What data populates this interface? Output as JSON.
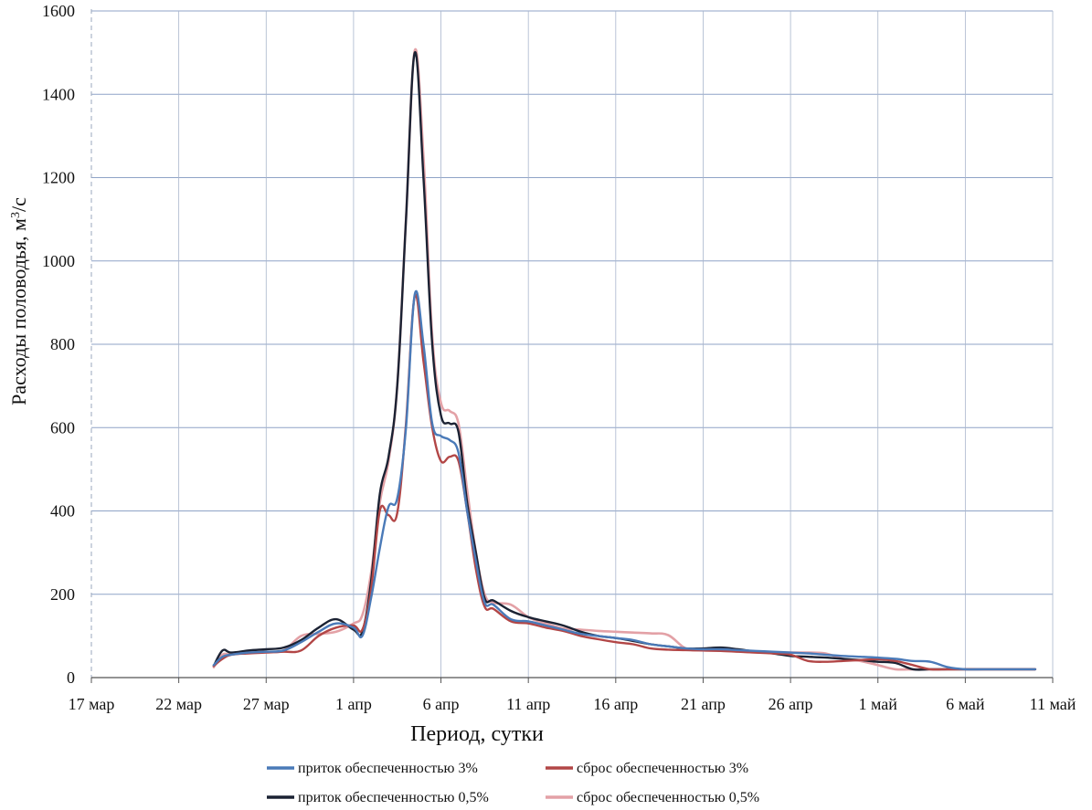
{
  "chart_data": {
    "type": "line",
    "title": "",
    "xlabel": "Период, сутки",
    "ylabel_main": "Расходы половодья, м",
    "ylabel_sup": "3",
    "ylabel_tail": "/с",
    "ylim": [
      0,
      1600
    ],
    "y_ticks": [
      0,
      200,
      400,
      600,
      800,
      1000,
      1200,
      1400,
      1600
    ],
    "xlim_days": [
      0,
      55
    ],
    "x_tick_labels": [
      "17 мар",
      "22 мар",
      "27 мар",
      "1 апр",
      "6 апр",
      "11 апр",
      "16 апр",
      "21 апр",
      "26 апр",
      "1 май",
      "6 май",
      "11 май"
    ],
    "grid": true,
    "legend_position": "bottom",
    "series": [
      {
        "name": "приток обеспеченностью 3%",
        "color": "#4a7ab8",
        "x": [
          7.0,
          7.5,
          8.0,
          9.0,
          10.0,
          11.0,
          12.0,
          13.0,
          14.0,
          15.0,
          15.5,
          16.0,
          16.5,
          17.0,
          17.5,
          18.0,
          18.5,
          19.0,
          19.5,
          20.0,
          20.5,
          21.0,
          21.5,
          22.0,
          22.5,
          23.0,
          24.0,
          25.0,
          26.0,
          27.0,
          28.0,
          29.0,
          30.0,
          31.0,
          32.0,
          33.0,
          34.0,
          35.0,
          36.0,
          37.0,
          38.0,
          39.0,
          40.0,
          41.0,
          42.0,
          43.0,
          44.0,
          45.0,
          46.0,
          47.0,
          48.0,
          49.0,
          50.0,
          51.0,
          52.0,
          53.0,
          54.0
        ],
        "y": [
          30,
          50,
          55,
          60,
          62,
          65,
          85,
          110,
          130,
          120,
          100,
          190,
          310,
          410,
          430,
          600,
          920,
          800,
          610,
          580,
          570,
          540,
          400,
          280,
          180,
          175,
          140,
          135,
          125,
          115,
          105,
          100,
          95,
          90,
          80,
          75,
          70,
          68,
          68,
          66,
          64,
          62,
          60,
          58,
          55,
          52,
          50,
          48,
          45,
          40,
          38,
          25,
          20,
          20,
          20,
          20,
          20
        ]
      },
      {
        "name": "сброс обеспеченностью 3%",
        "color": "#b24646",
        "x": [
          7.0,
          7.5,
          8.0,
          9.0,
          10.0,
          11.0,
          12.0,
          13.0,
          14.0,
          15.0,
          15.5,
          16.0,
          16.5,
          17.0,
          17.5,
          18.0,
          18.5,
          19.0,
          19.5,
          20.0,
          20.5,
          21.0,
          21.5,
          22.0,
          22.5,
          23.0,
          24.0,
          25.0,
          26.0,
          27.0,
          28.0,
          29.0,
          30.0,
          31.0,
          32.0,
          33.0,
          34.0,
          35.0,
          36.0,
          37.0,
          38.0,
          39.0,
          40.0,
          41.0,
          42.0,
          43.0,
          44.0,
          45.0,
          46.0,
          47.0,
          48.0,
          49.0,
          50.0,
          51.0,
          52.0,
          53.0,
          54.0
        ],
        "y": [
          28,
          45,
          55,
          58,
          60,
          62,
          65,
          100,
          120,
          125,
          115,
          210,
          400,
          390,
          395,
          610,
          915,
          760,
          600,
          520,
          530,
          520,
          400,
          260,
          170,
          165,
          135,
          130,
          120,
          112,
          100,
          92,
          85,
          80,
          70,
          67,
          66,
          65,
          64,
          62,
          60,
          58,
          55,
          40,
          38,
          40,
          42,
          44,
          40,
          30,
          20,
          20,
          20,
          20,
          20,
          20,
          20
        ]
      },
      {
        "name": "приток обеспеченностью 0,5%",
        "color": "#1b2233",
        "x": [
          7.0,
          7.5,
          8.0,
          9.0,
          10.0,
          11.0,
          12.0,
          13.0,
          14.0,
          15.0,
          15.5,
          16.0,
          16.5,
          17.0,
          17.5,
          18.0,
          18.5,
          19.0,
          19.5,
          20.0,
          20.5,
          21.0,
          21.5,
          22.0,
          22.5,
          23.0,
          24.0,
          25.0,
          26.0,
          27.0,
          28.0,
          29.0,
          30.0,
          31.0,
          32.0,
          33.0,
          34.0,
          35.0,
          36.0,
          37.0,
          38.0,
          39.0,
          40.0,
          41.0,
          42.0,
          43.0,
          44.0,
          45.0,
          46.0,
          47.0,
          48.0,
          49.0,
          50.0,
          51.0,
          52.0,
          53.0,
          54.0
        ],
        "y": [
          28,
          65,
          60,
          65,
          68,
          72,
          90,
          120,
          140,
          115,
          110,
          230,
          440,
          530,
          700,
          1100,
          1500,
          1200,
          800,
          630,
          610,
          590,
          420,
          300,
          190,
          185,
          160,
          145,
          135,
          125,
          110,
          100,
          95,
          88,
          80,
          75,
          70,
          70,
          72,
          68,
          62,
          58,
          52,
          50,
          48,
          45,
          42,
          38,
          35,
          20,
          20,
          20,
          20,
          20,
          20,
          20,
          20
        ]
      },
      {
        "name": "сброс обеспеченностью 0,5%",
        "color": "#e3a1a6",
        "x": [
          7.0,
          7.5,
          8.0,
          9.0,
          10.0,
          11.0,
          12.0,
          13.0,
          14.0,
          15.0,
          15.5,
          16.0,
          16.5,
          17.0,
          17.5,
          18.0,
          18.5,
          19.0,
          19.5,
          20.0,
          20.5,
          21.0,
          21.5,
          22.0,
          22.5,
          23.0,
          24.0,
          25.0,
          26.0,
          27.0,
          28.0,
          29.0,
          30.0,
          31.0,
          32.0,
          33.0,
          34.0,
          35.0,
          36.0,
          37.0,
          38.0,
          39.0,
          40.0,
          41.0,
          42.0,
          43.0,
          44.0,
          45.0,
          46.0,
          47.0,
          48.0,
          49.0,
          50.0,
          51.0,
          52.0,
          53.0,
          54.0
        ],
        "y": [
          25,
          55,
          55,
          60,
          62,
          65,
          100,
          105,
          110,
          130,
          150,
          250,
          420,
          520,
          700,
          1100,
          1505,
          1250,
          820,
          660,
          640,
          610,
          450,
          300,
          200,
          180,
          175,
          145,
          130,
          118,
          115,
          112,
          110,
          108,
          106,
          102,
          70,
          65,
          65,
          63,
          60,
          60,
          60,
          60,
          58,
          45,
          40,
          30,
          20,
          20,
          20,
          20,
          20,
          20,
          20,
          20,
          20
        ]
      }
    ]
  }
}
